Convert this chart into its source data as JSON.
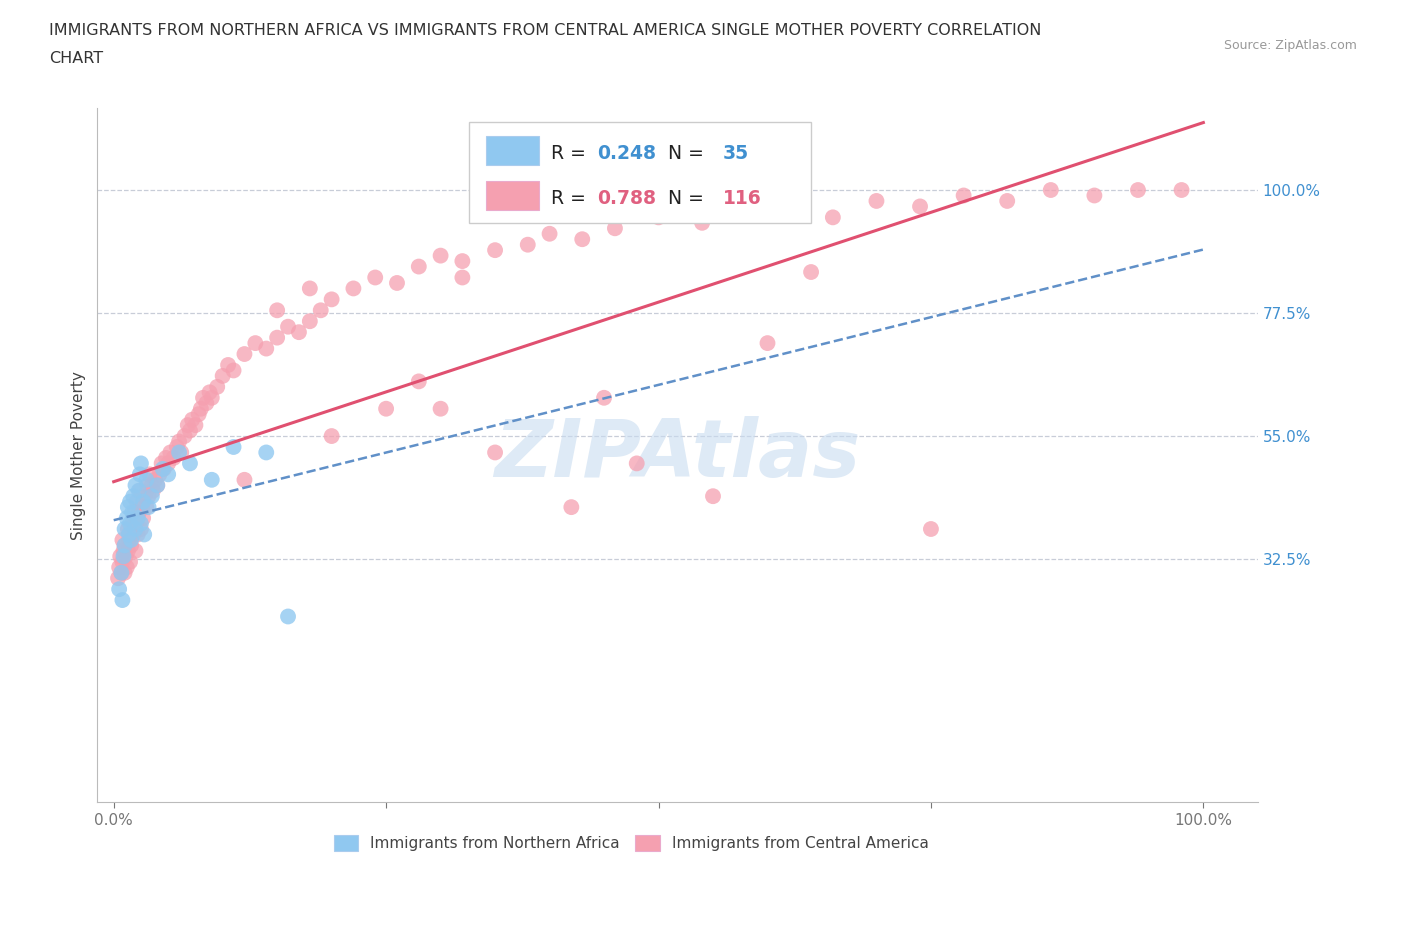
{
  "title_line1": "IMMIGRANTS FROM NORTHERN AFRICA VS IMMIGRANTS FROM CENTRAL AMERICA SINGLE MOTHER POVERTY CORRELATION",
  "title_line2": "CHART",
  "source": "Source: ZipAtlas.com",
  "ylabel": "Single Mother Poverty",
  "y_ticks_right": [
    1.0,
    0.775,
    0.55,
    0.325
  ],
  "y_tick_labels_right": [
    "100.0%",
    "77.5%",
    "55.0%",
    "32.5%"
  ],
  "hlines": [
    1.0,
    0.775,
    0.55,
    0.325
  ],
  "R_blue": 0.248,
  "N_blue": 35,
  "R_pink": 0.788,
  "N_pink": 116,
  "color_blue": "#90C8F0",
  "color_pink": "#F5A0B0",
  "color_blue_text": "#4090D0",
  "color_pink_text": "#E06080",
  "trendline_blue": "#6090C8",
  "trendline_pink": "#E05070",
  "watermark_color": "#C8DCF0",
  "blue_scatter_x": [
    0.005,
    0.007,
    0.008,
    0.009,
    0.01,
    0.01,
    0.012,
    0.013,
    0.014,
    0.015,
    0.015,
    0.016,
    0.017,
    0.018,
    0.02,
    0.02,
    0.022,
    0.023,
    0.024,
    0.025,
    0.025,
    0.027,
    0.028,
    0.03,
    0.032,
    0.035,
    0.04,
    0.045,
    0.05,
    0.06,
    0.07,
    0.09,
    0.11,
    0.14,
    0.16
  ],
  "blue_scatter_y": [
    0.27,
    0.3,
    0.25,
    0.33,
    0.35,
    0.38,
    0.4,
    0.42,
    0.37,
    0.39,
    0.43,
    0.36,
    0.41,
    0.44,
    0.38,
    0.46,
    0.4,
    0.45,
    0.48,
    0.39,
    0.5,
    0.43,
    0.37,
    0.47,
    0.42,
    0.44,
    0.46,
    0.49,
    0.48,
    0.52,
    0.5,
    0.47,
    0.53,
    0.52,
    0.22
  ],
  "pink_scatter_x": [
    0.004,
    0.005,
    0.006,
    0.007,
    0.008,
    0.008,
    0.009,
    0.01,
    0.01,
    0.011,
    0.012,
    0.013,
    0.013,
    0.014,
    0.015,
    0.015,
    0.016,
    0.017,
    0.018,
    0.019,
    0.02,
    0.02,
    0.021,
    0.022,
    0.023,
    0.024,
    0.025,
    0.026,
    0.027,
    0.028,
    0.03,
    0.031,
    0.032,
    0.033,
    0.035,
    0.036,
    0.038,
    0.04,
    0.042,
    0.044,
    0.046,
    0.048,
    0.05,
    0.052,
    0.055,
    0.058,
    0.06,
    0.062,
    0.065,
    0.068,
    0.07,
    0.072,
    0.075,
    0.078,
    0.08,
    0.082,
    0.085,
    0.088,
    0.09,
    0.095,
    0.1,
    0.105,
    0.11,
    0.12,
    0.13,
    0.14,
    0.15,
    0.16,
    0.17,
    0.18,
    0.19,
    0.2,
    0.22,
    0.24,
    0.26,
    0.28,
    0.3,
    0.32,
    0.35,
    0.38,
    0.4,
    0.43,
    0.46,
    0.5,
    0.54,
    0.58,
    0.62,
    0.66,
    0.7,
    0.74,
    0.78,
    0.82,
    0.86,
    0.9,
    0.94,
    0.98,
    0.3,
    0.12,
    0.2,
    0.35,
    0.45,
    0.25,
    0.6,
    0.15,
    0.28,
    0.42,
    0.55,
    0.18,
    0.32,
    0.48,
    0.64,
    0.75
  ],
  "pink_scatter_y": [
    0.29,
    0.31,
    0.33,
    0.3,
    0.32,
    0.36,
    0.34,
    0.3,
    0.35,
    0.33,
    0.31,
    0.34,
    0.38,
    0.36,
    0.32,
    0.37,
    0.35,
    0.39,
    0.37,
    0.41,
    0.34,
    0.39,
    0.43,
    0.37,
    0.41,
    0.45,
    0.38,
    0.42,
    0.4,
    0.44,
    0.42,
    0.46,
    0.44,
    0.48,
    0.46,
    0.45,
    0.47,
    0.46,
    0.48,
    0.5,
    0.49,
    0.51,
    0.5,
    0.52,
    0.51,
    0.53,
    0.54,
    0.52,
    0.55,
    0.57,
    0.56,
    0.58,
    0.57,
    0.59,
    0.6,
    0.62,
    0.61,
    0.63,
    0.62,
    0.64,
    0.66,
    0.68,
    0.67,
    0.7,
    0.72,
    0.71,
    0.73,
    0.75,
    0.74,
    0.76,
    0.78,
    0.8,
    0.82,
    0.84,
    0.83,
    0.86,
    0.88,
    0.87,
    0.89,
    0.9,
    0.92,
    0.91,
    0.93,
    0.95,
    0.94,
    0.96,
    0.97,
    0.95,
    0.98,
    0.97,
    0.99,
    0.98,
    1.0,
    0.99,
    1.0,
    1.0,
    0.6,
    0.47,
    0.55,
    0.52,
    0.62,
    0.6,
    0.72,
    0.78,
    0.65,
    0.42,
    0.44,
    0.82,
    0.84,
    0.5,
    0.85,
    0.38
  ]
}
